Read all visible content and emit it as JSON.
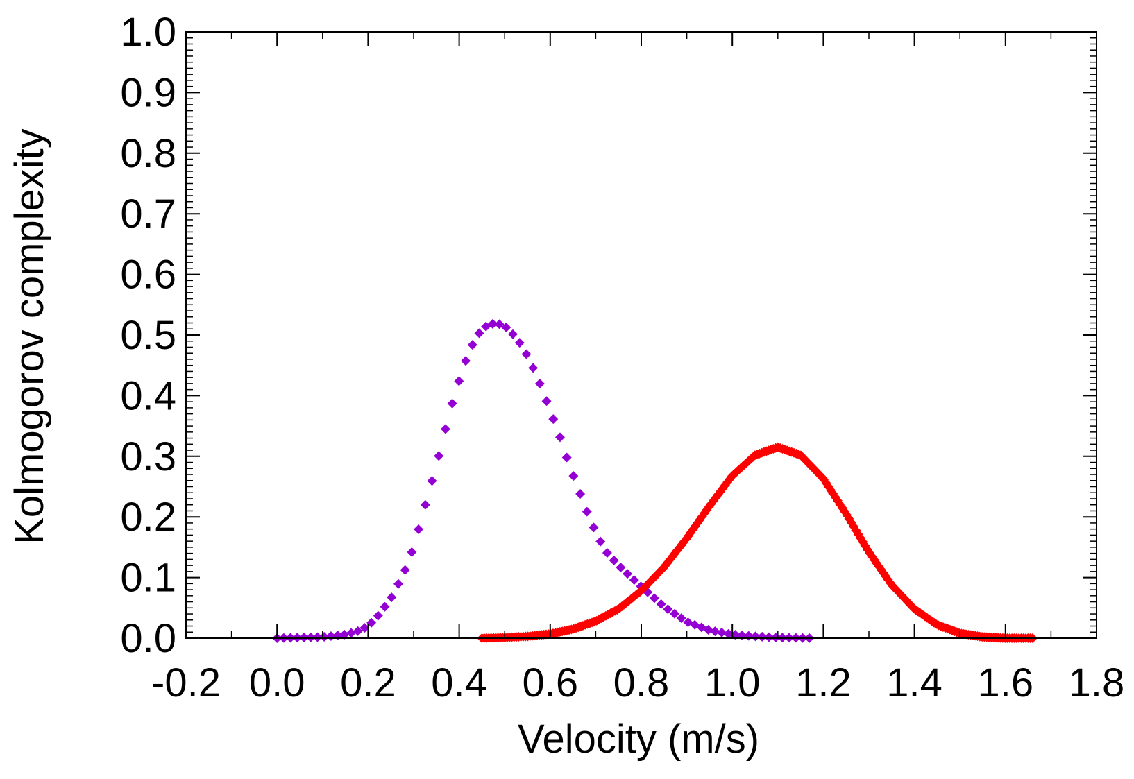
{
  "chart_data": {
    "type": "scatter",
    "title": "",
    "xlabel": "Velocity (m/s)",
    "ylabel": "Kolmogorov complexity",
    "xlim": [
      -0.2,
      1.8
    ],
    "ylim": [
      0.0,
      1.0
    ],
    "xticks": [
      "-0.2",
      "0.0",
      "0.2",
      "0.4",
      "0.6",
      "0.8",
      "1.0",
      "1.2",
      "1.4",
      "1.6",
      "1.8"
    ],
    "yticks": [
      "0.0",
      "0.1",
      "0.2",
      "0.3",
      "0.4",
      "0.5",
      "0.6",
      "0.7",
      "0.8",
      "0.9",
      "1.0"
    ],
    "grid": false,
    "legend": "none",
    "marker": "diamond",
    "series": [
      {
        "name": "purple",
        "color": "#9400D3",
        "x_start": 0.0,
        "x_end": 1.18,
        "x_step": 0.0148,
        "values": [
          [
            0.0,
            0.0
          ],
          [
            0.05,
            0.001
          ],
          [
            0.1,
            0.002
          ],
          [
            0.15,
            0.006
          ],
          [
            0.18,
            0.012
          ],
          [
            0.2,
            0.02
          ],
          [
            0.22,
            0.035
          ],
          [
            0.25,
            0.065
          ],
          [
            0.28,
            0.11
          ],
          [
            0.3,
            0.15
          ],
          [
            0.32,
            0.205
          ],
          [
            0.35,
            0.285
          ],
          [
            0.38,
            0.375
          ],
          [
            0.4,
            0.425
          ],
          [
            0.42,
            0.47
          ],
          [
            0.44,
            0.5
          ],
          [
            0.46,
            0.515
          ],
          [
            0.48,
            0.52
          ],
          [
            0.5,
            0.515
          ],
          [
            0.52,
            0.5
          ],
          [
            0.54,
            0.48
          ],
          [
            0.56,
            0.45
          ],
          [
            0.58,
            0.415
          ],
          [
            0.6,
            0.375
          ],
          [
            0.62,
            0.335
          ],
          [
            0.64,
            0.29
          ],
          [
            0.66,
            0.25
          ],
          [
            0.68,
            0.21
          ],
          [
            0.7,
            0.175
          ],
          [
            0.72,
            0.145
          ],
          [
            0.75,
            0.12
          ],
          [
            0.8,
            0.085
          ],
          [
            0.85,
            0.052
          ],
          [
            0.9,
            0.027
          ],
          [
            0.95,
            0.013
          ],
          [
            1.0,
            0.006
          ],
          [
            1.05,
            0.003
          ],
          [
            1.1,
            0.001
          ],
          [
            1.18,
            0.0
          ]
        ]
      },
      {
        "name": "red",
        "color": "#FF0000",
        "x_start": 0.45,
        "x_end": 1.66,
        "x_step": 0.00504,
        "values": [
          [
            0.45,
            0.0
          ],
          [
            0.5,
            0.001
          ],
          [
            0.55,
            0.003
          ],
          [
            0.6,
            0.007
          ],
          [
            0.65,
            0.015
          ],
          [
            0.7,
            0.028
          ],
          [
            0.75,
            0.048
          ],
          [
            0.8,
            0.078
          ],
          [
            0.85,
            0.117
          ],
          [
            0.9,
            0.165
          ],
          [
            0.95,
            0.218
          ],
          [
            1.0,
            0.268
          ],
          [
            1.05,
            0.302
          ],
          [
            1.1,
            0.315
          ],
          [
            1.15,
            0.302
          ],
          [
            1.2,
            0.263
          ],
          [
            1.25,
            0.205
          ],
          [
            1.3,
            0.142
          ],
          [
            1.35,
            0.088
          ],
          [
            1.4,
            0.048
          ],
          [
            1.45,
            0.022
          ],
          [
            1.5,
            0.008
          ],
          [
            1.55,
            0.002
          ],
          [
            1.6,
            0.0
          ],
          [
            1.66,
            0.0
          ]
        ]
      }
    ]
  }
}
